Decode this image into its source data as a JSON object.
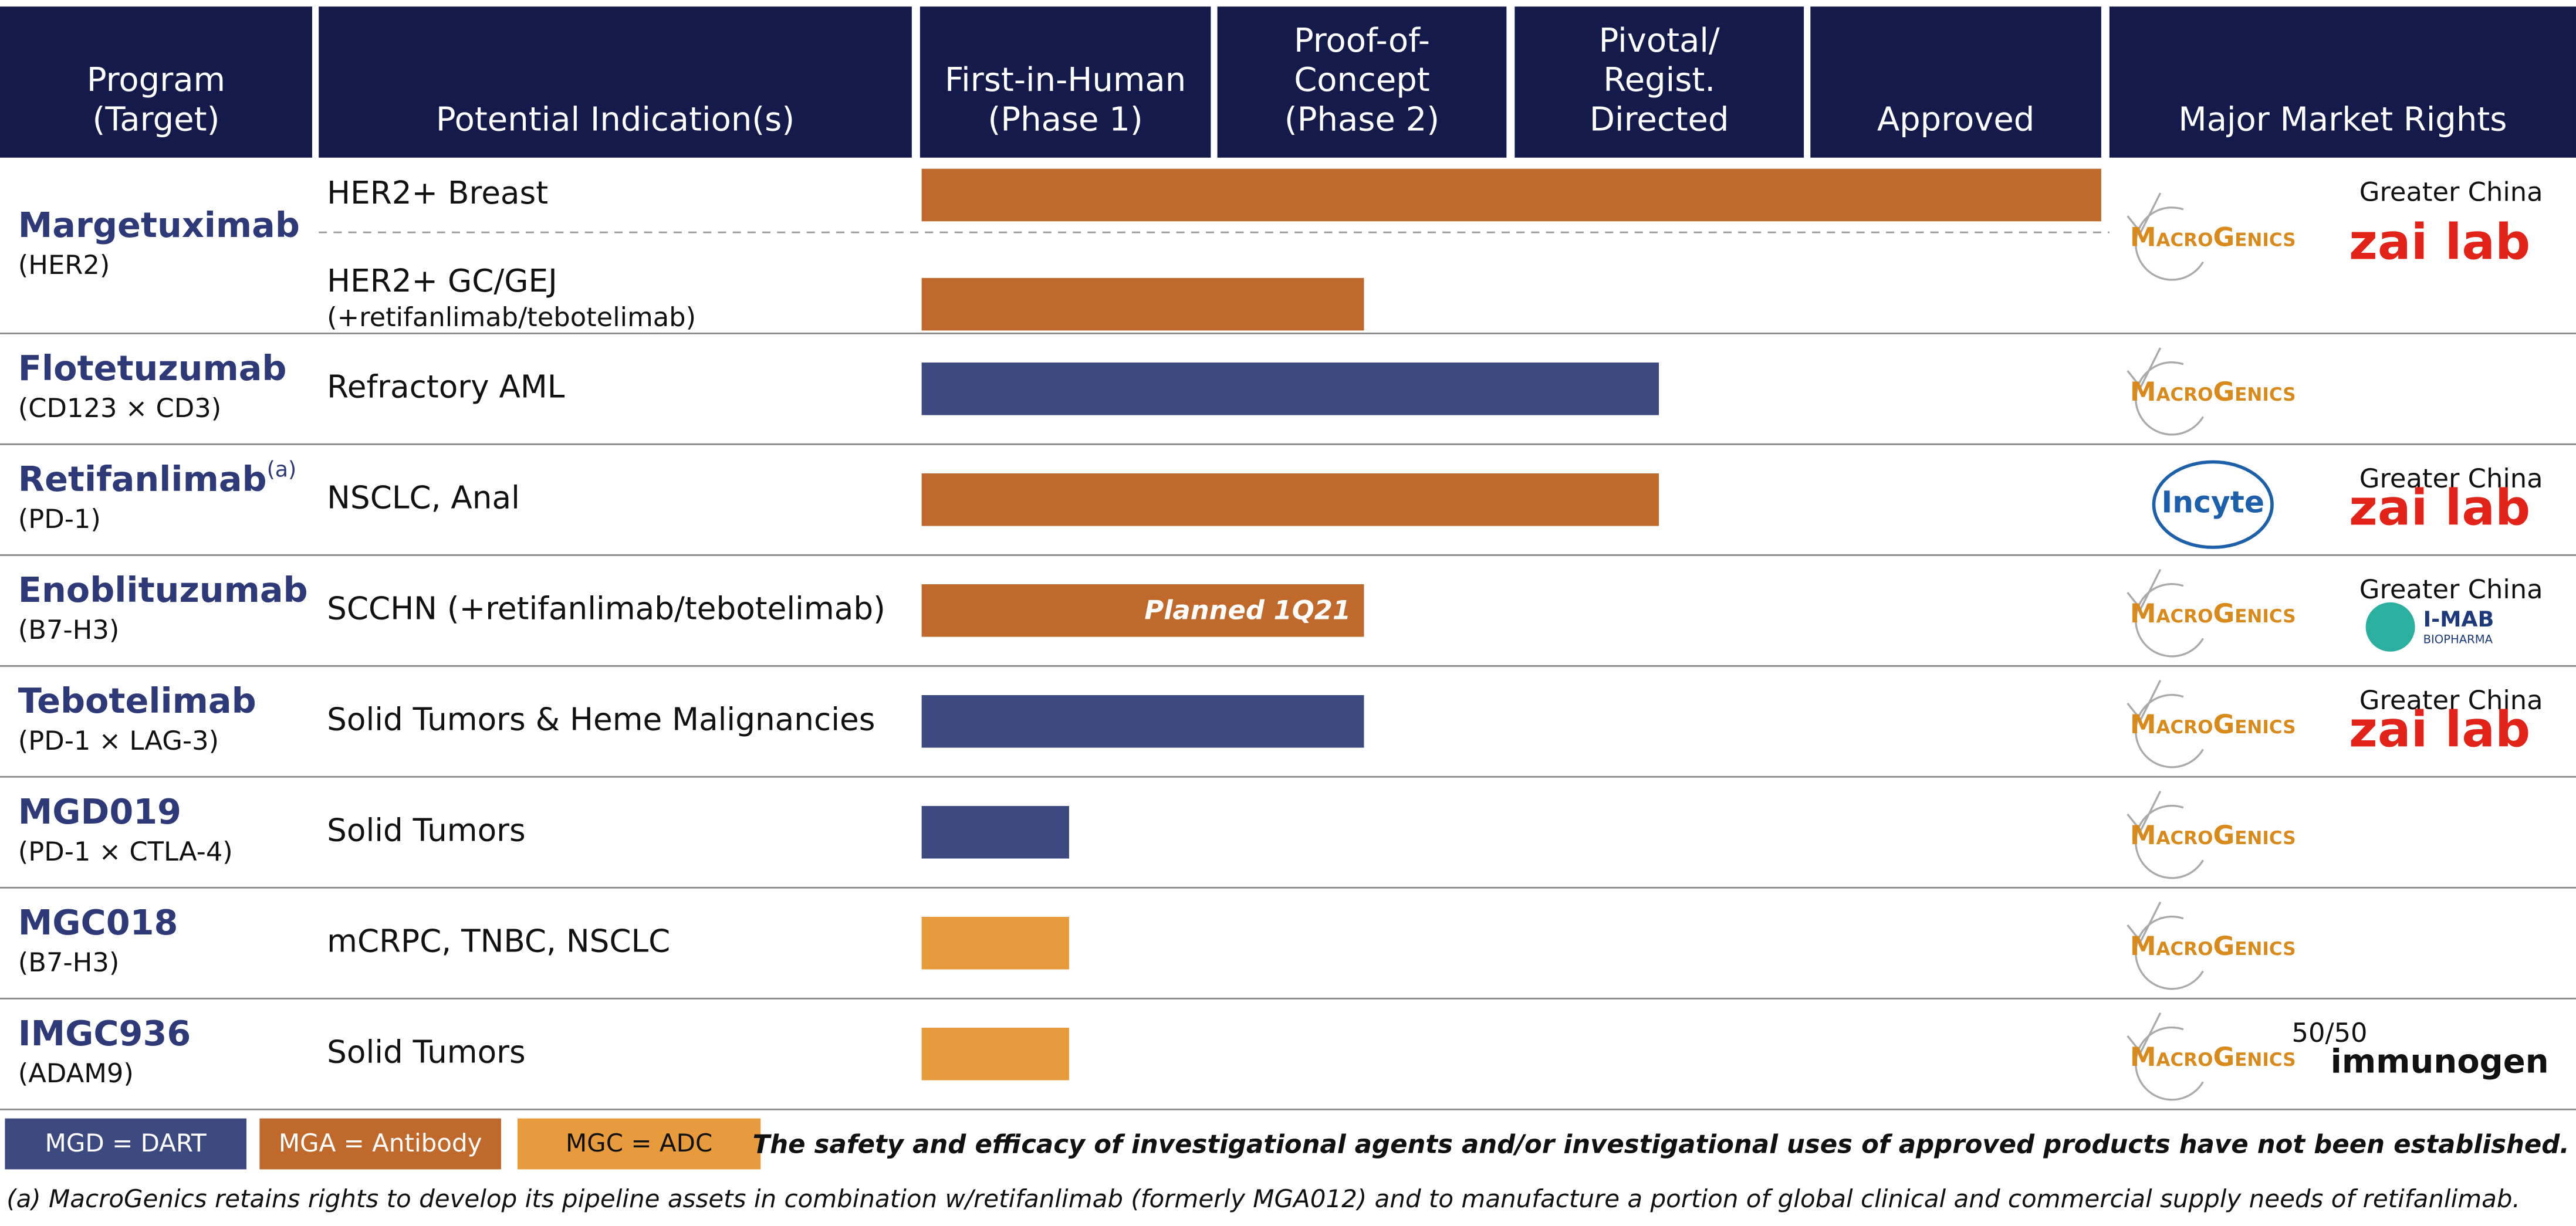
{
  "header": {
    "columns": [
      [
        "Program",
        "(Target)"
      ],
      [
        "Potential Indication(s)"
      ],
      [
        "First-in-Human",
        "(Phase 1)"
      ],
      [
        "Proof-of-",
        "Concept",
        "(Phase 2)"
      ],
      [
        "Pivotal/",
        "Regist.",
        "Directed"
      ],
      [
        "Approved"
      ],
      [
        "Major Market Rights"
      ]
    ]
  },
  "stage_range": [
    0,
    4
  ],
  "rows": [
    {
      "program": "Margetuximab",
      "target": "(HER2)",
      "indications": [
        {
          "lines": [
            "HER2+ Breast"
          ],
          "progress": 4,
          "color": "#c0692c"
        },
        {
          "lines": [
            "HER2+ GC/GEJ",
            "(+retifanlimab/tebotelimab)"
          ],
          "progress": 1.5,
          "color": "#c0692c"
        }
      ],
      "rights": [
        {
          "logo": "MacroGenics"
        },
        {
          "logo": "zai lab",
          "note": "Greater China"
        }
      ]
    },
    {
      "program": "Flotetuzumab",
      "target": "(CD123 × CD3)",
      "indications": [
        {
          "lines": [
            "Refractory AML"
          ],
          "progress": 2.5,
          "color": "#3d4a80"
        }
      ],
      "rights": [
        {
          "logo": "MacroGenics"
        }
      ]
    },
    {
      "program": "Retifanlimab",
      "sup": "(a)",
      "target": "(PD-1)",
      "indications": [
        {
          "lines": [
            "NSCLC, Anal"
          ],
          "progress": 2.5,
          "color": "#c0692c"
        }
      ],
      "rights": [
        {
          "logo": "Incyte"
        },
        {
          "logo": "zai lab",
          "note": "Greater China"
        }
      ]
    },
    {
      "program": "Enoblituzumab",
      "target": "(B7-H3)",
      "indications": [
        {
          "lines": [
            "SCCHN (+retifanlimab/tebotelimab)"
          ],
          "progress": 1.5,
          "color": "#c0692c",
          "bar_label": "Planned 1Q21"
        }
      ],
      "rights": [
        {
          "logo": "MacroGenics"
        },
        {
          "logo": "I-MAB",
          "sub": "BIOPHARMA",
          "note": "Greater China"
        }
      ]
    },
    {
      "program": "Tebotelimab",
      "target": "(PD-1 × LAG-3)",
      "indications": [
        {
          "lines": [
            "Solid Tumors & Heme Malignancies"
          ],
          "progress": 1.5,
          "color": "#3d4a80"
        }
      ],
      "rights": [
        {
          "logo": "MacroGenics"
        },
        {
          "logo": "zai lab",
          "note": "Greater China"
        }
      ]
    },
    {
      "program": "MGD019",
      "target": "(PD-1 × CTLA-4)",
      "indications": [
        {
          "lines": [
            "Solid Tumors"
          ],
          "progress": 0.5,
          "color": "#3d4a80"
        }
      ],
      "rights": [
        {
          "logo": "MacroGenics"
        }
      ]
    },
    {
      "program": "MGC018",
      "target": "(B7-H3)",
      "indications": [
        {
          "lines": [
            "mCRPC, TNBC, NSCLC"
          ],
          "progress": 0.5,
          "color": "#e89b3c"
        }
      ],
      "rights": [
        {
          "logo": "MacroGenics"
        }
      ]
    },
    {
      "program": "IMGC936",
      "target": "(ADAM9)",
      "indications": [
        {
          "lines": [
            "Solid Tumors"
          ],
          "progress": 0.5,
          "color": "#e89b3c"
        }
      ],
      "rights": [
        {
          "logo": "MacroGenics"
        },
        {
          "logo": "immunogen",
          "note": "50/50"
        }
      ]
    }
  ],
  "legend": [
    {
      "label": "MGD = DART",
      "color": "#3d4a80"
    },
    {
      "label": "MGA = Antibody",
      "color": "#c0692c"
    },
    {
      "label": "MGC = ADC",
      "color": "#e89b3c"
    }
  ],
  "disclaimer": "The safety and efficacy of investigational agents and/or investigational uses of approved products have not been established.",
  "footnote": "(a) MacroGenics retains rights to develop its pipeline assets in combination w/retifanlimab (formerly MGA012) and to manufacture a portion of global clinical and commercial supply needs of retifanlimab."
}
